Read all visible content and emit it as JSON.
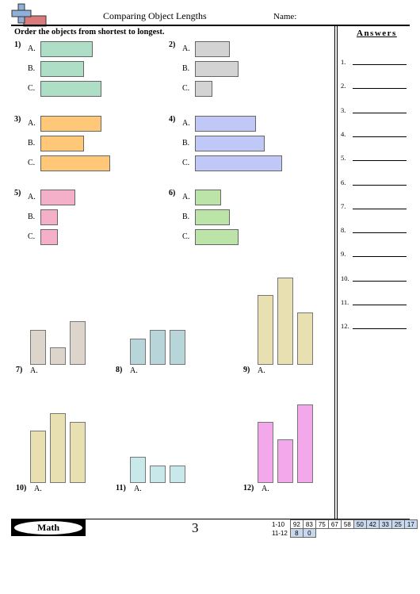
{
  "header": {
    "title": "Comparing Object Lengths",
    "name_label": "Name:"
  },
  "instructions": "Order the objects from shortest to longest.",
  "answers": {
    "heading": "Answers",
    "numbers": [
      "1.",
      "2.",
      "3.",
      "4.",
      "5.",
      "6.",
      "7.",
      "8.",
      "9.",
      "10.",
      "11.",
      "12."
    ]
  },
  "horizontal_problems": [
    {
      "num": "1)",
      "color": "#aedfc6",
      "options": [
        {
          "label": "A.",
          "length": 3
        },
        {
          "label": "B.",
          "length": 2.5
        },
        {
          "label": "C.",
          "length": 3.5
        }
      ]
    },
    {
      "num": "2)",
      "color": "#d3d3d3",
      "options": [
        {
          "label": "A.",
          "length": 2
        },
        {
          "label": "B.",
          "length": 2.5
        },
        {
          "label": "C.",
          "length": 1
        }
      ]
    },
    {
      "num": "3)",
      "color": "#ffc878",
      "options": [
        {
          "label": "A.",
          "length": 3.5
        },
        {
          "label": "B.",
          "length": 2.5
        },
        {
          "label": "C.",
          "length": 4
        }
      ]
    },
    {
      "num": "4)",
      "color": "#c0c8f8",
      "options": [
        {
          "label": "A.",
          "length": 3.5
        },
        {
          "label": "B.",
          "length": 4
        },
        {
          "label": "C.",
          "length": 5
        }
      ]
    },
    {
      "num": "5)",
      "color": "#f4b0c8",
      "options": [
        {
          "label": "A.",
          "length": 2
        },
        {
          "label": "B.",
          "length": 1
        },
        {
          "label": "C.",
          "length": 1
        }
      ]
    },
    {
      "num": "6)",
      "color": "#bce4a8",
      "options": [
        {
          "label": "A.",
          "length": 1.5
        },
        {
          "label": "B.",
          "length": 2
        },
        {
          "label": "C.",
          "length": 2.5
        }
      ]
    }
  ],
  "vertical_problems": [
    {
      "num": "7)",
      "label": "A.",
      "color": "#ddd5cb",
      "heights": [
        2,
        1,
        2.5
      ]
    },
    {
      "num": "8)",
      "label": "A.",
      "color": "#b8d6da",
      "heights": [
        1.5,
        2,
        2
      ]
    },
    {
      "num": "9)",
      "label": "A.",
      "color": "#e8e0b0",
      "heights": [
        4,
        5,
        3
      ]
    },
    {
      "num": "10)",
      "label": "A.",
      "color": "#e8e0b0",
      "heights": [
        3,
        4,
        3.5
      ]
    },
    {
      "num": "11)",
      "label": "A.",
      "color": "#c8e8ea",
      "heights": [
        1.5,
        1,
        1
      ]
    },
    {
      "num": "12)",
      "label": "A.",
      "color": "#f4a8ec",
      "heights": [
        3.5,
        2.5,
        4.5
      ]
    }
  ],
  "footer": {
    "subject": "Math",
    "page": "3",
    "score_rows": [
      {
        "label": "1-10",
        "scores": [
          "92",
          "83",
          "75",
          "67",
          "58",
          "50",
          "42",
          "33",
          "25",
          "17"
        ],
        "highlight_from": 5
      },
      {
        "label": "11-12",
        "scores": [
          "8",
          "0"
        ],
        "highlight_from": 0
      }
    ]
  }
}
